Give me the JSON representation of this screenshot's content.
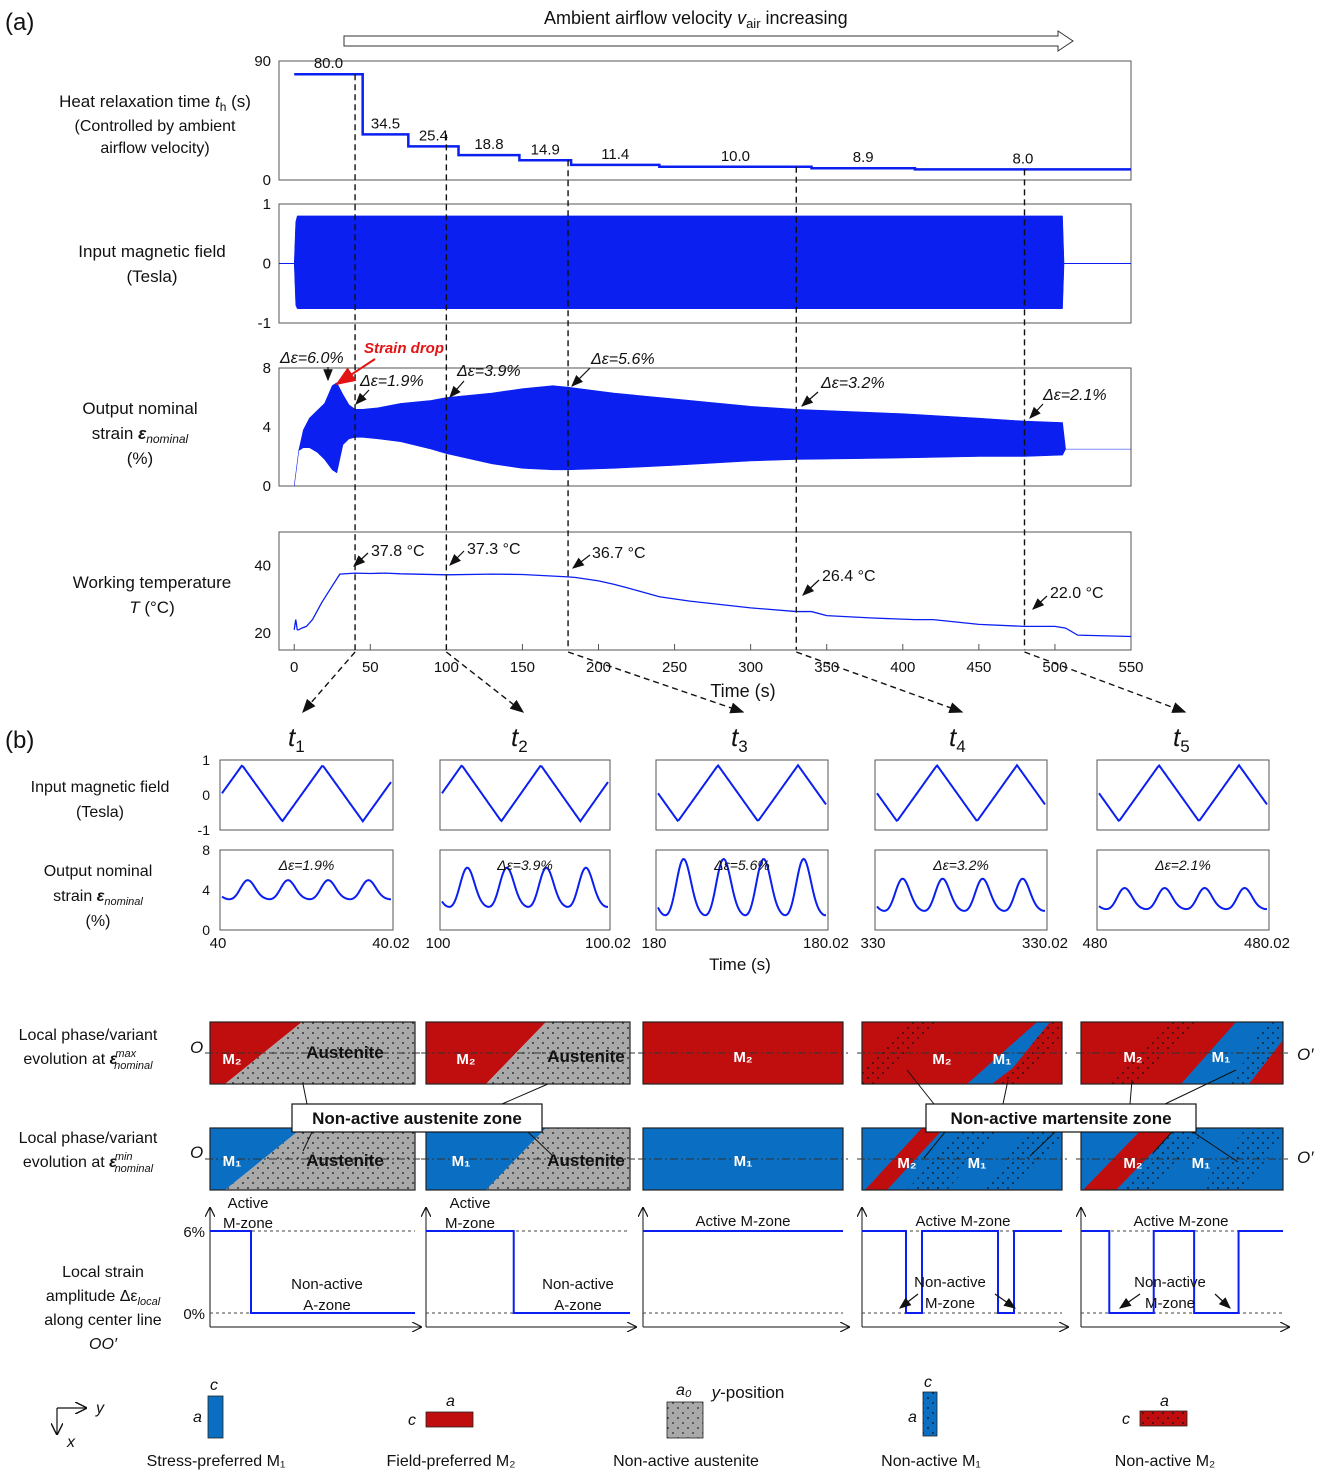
{
  "colors": {
    "blue": "#0a1ff0",
    "m1": "#0a6fc2",
    "m2": "#c00e0e",
    "austenite": "#a9a9a9"
  },
  "panel_a": {
    "label": "(a)",
    "airflow_arrow": "Ambient airflow velocity v_air increasing",
    "airflow_main": "Ambient airflow velocity ",
    "airflow_v": "v",
    "airflow_sub": "air",
    "airflow_end": " increasing",
    "time_label": "Time  (s)",
    "heat_label": {
      "line1a": "Heat relaxation time ",
      "line1b": "t",
      "line1c": "h",
      "line1d": " (s)",
      "line2": "(Controlled by ambient",
      "line3": "airflow velocity)"
    },
    "field_label": {
      "line1": "Input magnetic field",
      "line2": "(Tesla)"
    },
    "strain_label": {
      "line1": "Output nominal",
      "line2a": "strain ",
      "line2b": "ε",
      "line2c": "nominal",
      "line3": "(%)"
    },
    "temp_label": {
      "line1": "Working temperature",
      "line2a": "T",
      "line2b": " (°C)"
    },
    "strain_drop": "Strain drop",
    "strain_annotations": [
      "Δε=6.0%",
      "Δε=1.9%",
      "Δε=3.9%",
      "Δε=5.6%",
      "Δε=3.2%",
      "Δε=2.1%"
    ],
    "temp_annotations": [
      "37.8 °C",
      "37.3 °C",
      "36.7 °C",
      "26.4 °C",
      "22.0 °C"
    ]
  },
  "panel_b": {
    "label": "(b)",
    "times": [
      "t1",
      "t2",
      "t3",
      "t4",
      "t5"
    ],
    "time_label": "Time (s)",
    "field_label": {
      "line1": "Input magnetic field",
      "line2": "(Tesla)"
    },
    "strain_label": {
      "line1": "Output nominal",
      "line2a": "strain ",
      "line2b": "ε",
      "line2c": "nominal",
      "line3": "(%)"
    },
    "x_ticks": [
      [
        "40",
        "40.02"
      ],
      [
        "100",
        "100.02"
      ],
      [
        "180",
        "180.02"
      ],
      [
        "330",
        "330.02"
      ],
      [
        "480",
        "480.02"
      ]
    ],
    "strain_amplitudes": [
      "Δε=1.9%",
      "Δε=3.9%",
      "Δε=5.6%",
      "Δε=3.2%",
      "Δε=2.1%"
    ],
    "phase_max_label": {
      "line1": "Local phase/variant",
      "line2a": "evolution at ",
      "line2b": "ε",
      "line2c": "max",
      "line2d": "nominal"
    },
    "phase_min_label": {
      "line1": "Local phase/variant",
      "line2a": "evolution at ",
      "line2b": "ε",
      "line2c": "min",
      "line2d": "nominal"
    },
    "austenite": "Austenite",
    "m1": "M₁",
    "m2": "M₂",
    "o": "O",
    "o_prime": "O′",
    "non_active_austenite": "Non-active austenite zone",
    "non_active_martensite": "Non-active martensite zone",
    "local_strain_label": {
      "line1": "Local strain",
      "line2a": "amplitude ",
      "line2b": "Δε",
      "line2c": "local",
      "line3": "along center line",
      "line4": "OO′"
    },
    "y_ticks": [
      "6%",
      "0%"
    ],
    "active_m_zone": "Active M-zone",
    "active_m_zone_2line": [
      "Active",
      "M-zone"
    ],
    "non_active_a_zone": [
      "Non-active",
      "A-zone"
    ],
    "non_active_m_zone": [
      "Non-active",
      "M-zone"
    ],
    "y_position": "y-position",
    "y_position_parts": [
      "y",
      "-position"
    ]
  },
  "legend": {
    "axes": {
      "y": "y",
      "x": "x"
    },
    "items": [
      {
        "label": "Stress-preferred M₁",
        "top": "c",
        "side": "a"
      },
      {
        "label": "Field-preferred M₂",
        "top": "a",
        "side": "c"
      },
      {
        "label": "Non-active austenite",
        "top": "a₀",
        "side": ""
      },
      {
        "label": "Non-active M₁",
        "top": "c",
        "side": "a"
      },
      {
        "label": "Non-active M₂",
        "top": "a",
        "side": "c"
      }
    ]
  },
  "chart_data": [
    {
      "type": "line",
      "name": "heat-relaxation-time",
      "x_range": [
        -10,
        550
      ],
      "ylim": [
        0,
        90
      ],
      "y_ticks": [
        0,
        90
      ],
      "step_x": [
        0,
        45,
        75,
        108,
        148,
        182,
        240,
        340,
        408,
        550
      ],
      "values": [
        80.0,
        34.5,
        25.4,
        18.8,
        14.9,
        11.4,
        10.0,
        8.9,
        8.0
      ],
      "value_labels": [
        "80.0",
        "34.5",
        "25.4",
        "18.8",
        "14.9",
        "11.4",
        "10.0",
        "8.9",
        "8.0"
      ],
      "marker_times": [
        40,
        100,
        180,
        330,
        480
      ]
    },
    {
      "type": "area",
      "name": "input-magnetic-field",
      "x_range": [
        -10,
        550
      ],
      "ylim": [
        -1,
        1
      ],
      "y_ticks": [
        "1",
        "0",
        "-1"
      ],
      "envelope": {
        "x": [
          0,
          1,
          2,
          3,
          505,
          506
        ],
        "upper": [
          0,
          0.7,
          0.8,
          0.8,
          0.8,
          0
        ],
        "lower": [
          0,
          -0.7,
          -0.76,
          -0.76,
          -0.76,
          0
        ]
      }
    },
    {
      "type": "area",
      "name": "output-nominal-strain",
      "x_range": [
        -10,
        550
      ],
      "ylim": [
        0,
        8
      ],
      "y_ticks": [
        "8",
        "4",
        "0"
      ],
      "envelope": {
        "x": [
          0,
          3,
          6,
          10,
          15,
          20,
          25,
          28,
          32,
          36,
          40,
          45,
          55,
          70,
          90,
          100,
          130,
          150,
          170,
          180,
          210,
          250,
          300,
          330,
          400,
          450,
          480,
          505,
          507,
          550
        ],
        "upper": [
          0,
          2.4,
          3.8,
          4.6,
          5.1,
          5.6,
          6.8,
          7.0,
          6.2,
          5.5,
          5.2,
          5.2,
          5.3,
          5.6,
          5.8,
          6.0,
          6.3,
          6.6,
          6.8,
          6.7,
          6.3,
          5.9,
          5.4,
          5.2,
          4.9,
          4.6,
          4.4,
          4.3,
          2.5,
          2.5
        ],
        "lower": [
          0,
          2.4,
          2.6,
          2.6,
          2.3,
          1.8,
          1.1,
          0.9,
          2.8,
          3.2,
          3.3,
          3.3,
          3.2,
          3.0,
          2.5,
          2.2,
          1.5,
          1.2,
          1.1,
          1.1,
          1.2,
          1.4,
          1.7,
          1.8,
          1.9,
          2.0,
          2.0,
          2.1,
          2.5,
          2.5
        ]
      }
    },
    {
      "type": "line",
      "name": "working-temperature",
      "x_range": [
        -10,
        550
      ],
      "ylim": [
        15,
        50
      ],
      "y_ticks": [
        20,
        40
      ],
      "x": [
        0,
        1,
        2,
        3,
        5,
        8,
        12,
        18,
        25,
        30,
        40,
        50,
        60,
        70,
        100,
        130,
        150,
        180,
        185,
        200,
        210,
        220,
        240,
        260,
        280,
        300,
        330,
        340,
        350,
        380,
        408,
        420,
        450,
        480,
        500,
        507,
        515,
        550
      ],
      "y": [
        21,
        24,
        21,
        21,
        21.5,
        22,
        24,
        29,
        34,
        37.5,
        37.8,
        37.7,
        37.8,
        37.6,
        37.3,
        37.5,
        37.4,
        36.7,
        36.5,
        35.5,
        34.5,
        33.3,
        30.8,
        29.5,
        28.5,
        27.5,
        26.4,
        26.4,
        25.2,
        24.5,
        24.0,
        24.0,
        22.6,
        22.0,
        22.0,
        21.5,
        19.4,
        19.0
      ],
      "x_ticks": [
        0,
        50,
        100,
        150,
        200,
        250,
        300,
        350,
        400,
        450,
        500,
        550
      ]
    },
    {
      "type": "line",
      "name": "zoomed-waveforms",
      "field_range": [
        -1,
        1
      ],
      "field_ticks": [
        "1",
        "0",
        "-1"
      ],
      "strain_range": [
        0,
        8
      ],
      "strain_ticks": [
        "8",
        "4",
        "0"
      ],
      "strain_amplitude": [
        1.9,
        3.9,
        5.6,
        3.2,
        2.1
      ],
      "strain_mean": [
        3.9,
        4.0,
        3.9,
        3.3,
        3.0
      ]
    },
    {
      "type": "line",
      "name": "local-strain-amplitude",
      "ylim": [
        0,
        6
      ],
      "y_ticks": [
        "6%",
        "0%"
      ],
      "profiles": [
        {
          "y": [
            0,
            0.2,
            0.2,
            1.0
          ],
          "value": [
            6,
            6,
            0,
            0
          ]
        },
        {
          "y": [
            0,
            0.43,
            0.43,
            1.0
          ],
          "value": [
            6,
            6,
            0,
            0
          ]
        },
        {
          "y": [
            0,
            1.0
          ],
          "value": [
            6,
            6
          ]
        },
        {
          "y": [
            0,
            0.22,
            0.22,
            0.3,
            0.3,
            0.68,
            0.68,
            0.76,
            0.76,
            1.0
          ],
          "value": [
            6,
            6,
            0,
            0,
            6,
            6,
            0,
            0,
            6,
            6
          ]
        },
        {
          "y": [
            0,
            0.14,
            0.14,
            0.36,
            0.36,
            0.56,
            0.56,
            0.78,
            0.78,
            1.0
          ],
          "value": [
            6,
            6,
            0,
            0,
            6,
            6,
            0,
            0,
            6,
            6
          ]
        }
      ]
    }
  ]
}
